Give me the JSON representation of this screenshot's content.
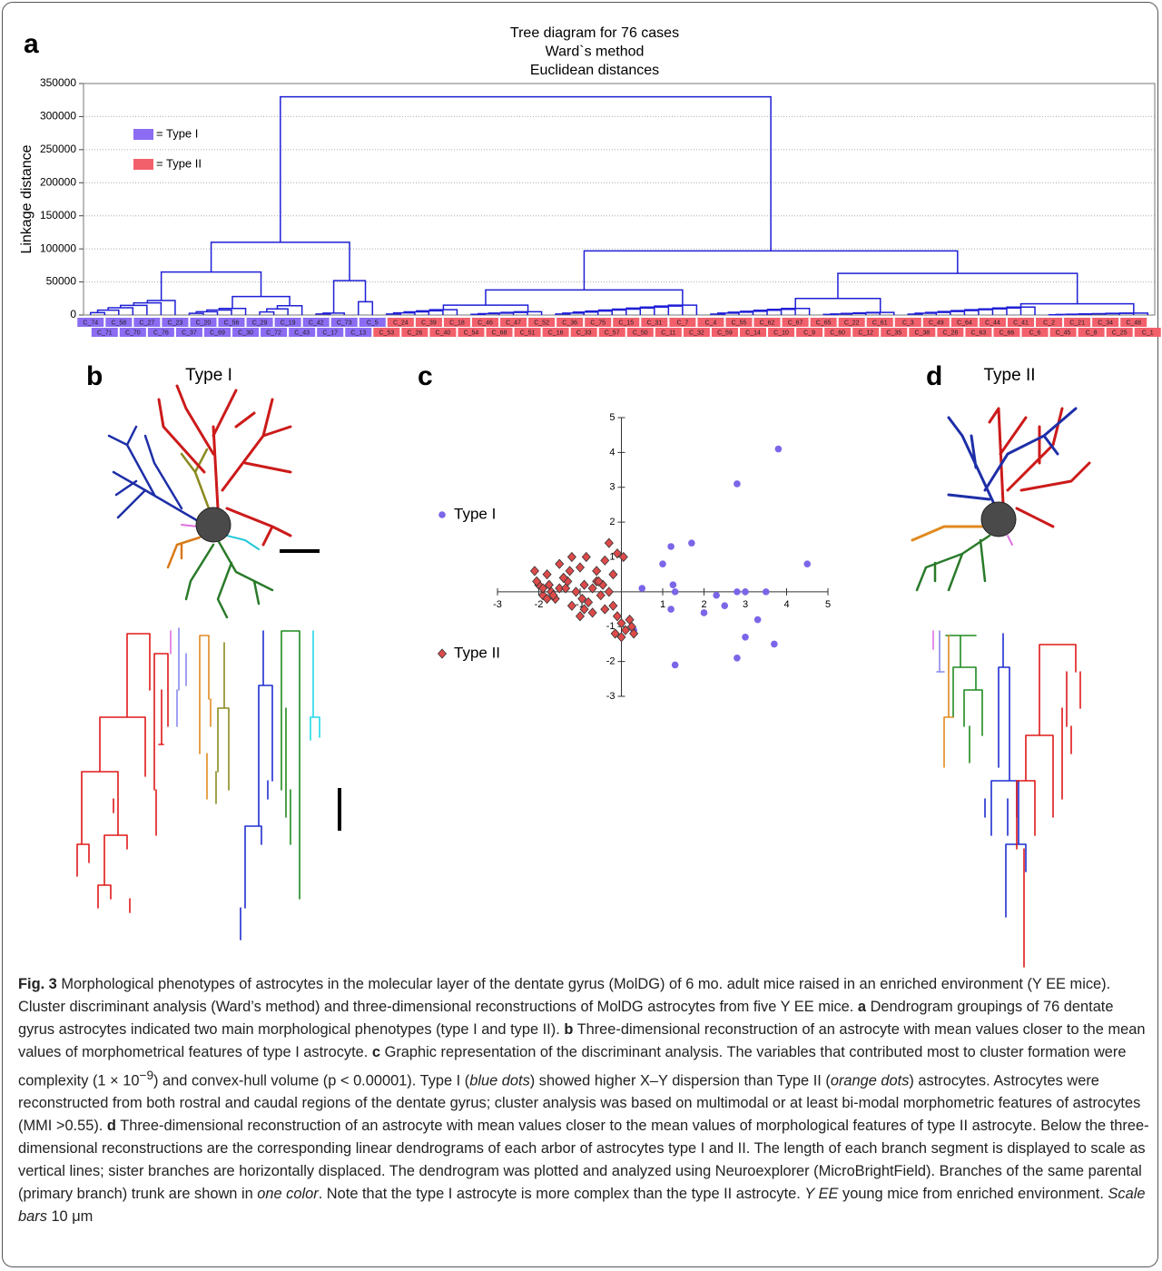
{
  "panel_labels": [
    "a",
    "b",
    "c",
    "d"
  ],
  "panel_titles": [
    "Type I",
    "Type II"
  ],
  "chart_data": [
    {
      "type": "dendrogram",
      "title": [
        "Tree diagram for 76 cases",
        "Ward`s method",
        "Euclidean distances"
      ],
      "y_label": "Linkage distance",
      "ylim": [
        0,
        350000
      ],
      "yticks": [
        0,
        50000,
        100000,
        150000,
        200000,
        250000,
        300000,
        350000
      ],
      "grid": true,
      "color": "#1f1fd6",
      "legend": [
        {
          "label": "= Type I",
          "color": "#8b6cf2"
        },
        {
          "label": "= Type II",
          "color": "#f2606c"
        }
      ],
      "leaves": [
        "C_74",
        "C_71",
        "C_58",
        "C_70",
        "C_27",
        "C_76",
        "C_23",
        "C_37",
        "C_20",
        "C_69",
        "C_56",
        "C_30",
        "C_29",
        "C_72",
        "C_19",
        "C_43",
        "C_42",
        "C_17",
        "C_73",
        "C_13",
        "C_5",
        "C_53",
        "C_24",
        "C_26",
        "C_39",
        "C_40",
        "C_18",
        "C_54",
        "C_46",
        "C_68",
        "C_47",
        "C_51",
        "C_52",
        "C_16",
        "C_36",
        "C_33",
        "C_75",
        "C_57",
        "C_15",
        "C_50",
        "C_31",
        "C_11",
        "C_7",
        "C_32",
        "C_4",
        "C_59",
        "C_55",
        "C_14",
        "C_62",
        "C_10",
        "C_67",
        "C_9",
        "C_65",
        "C_60",
        "C_22",
        "C_12",
        "C_61",
        "C_35",
        "C_3",
        "C_38",
        "C_49",
        "C_28",
        "C_64",
        "C_63",
        "C_44",
        "C_66",
        "C_41",
        "C_6",
        "C_2",
        "C_45",
        "C_21",
        "C_8",
        "C_34",
        "C_25",
        "C_48",
        "C_1"
      ],
      "tree": {
        "h": 330000,
        "c": [
          {
            "h": 110000,
            "c": [
              {
                "h": 65000,
                "c": [
                  {
                    "h": 22000,
                    "n": 7
                  },
                  {
                    "h": 28000,
                    "c": [
                      {
                        "h": 10000,
                        "n": 5
                      },
                      {
                        "h": 14000,
                        "n": 4
                      }
                    ]
                  }
                ]
              },
              {
                "h": 52000,
                "c": [
                  {
                    "h": 3000,
                    "n": 3
                  },
                  {
                    "h": 20000,
                    "n": 2
                  }
                ]
              }
            ]
          },
          {
            "h": 97000,
            "c": [
              {
                "h": 38000,
                "c": [
                  {
                    "h": 15000,
                    "c": [
                      {
                        "h": 8000,
                        "n": 6
                      },
                      {
                        "h": 5000,
                        "n": 6
                      }
                    ]
                  },
                  {
                    "h": 15000,
                    "n": 11
                  }
                ]
              },
              {
                "h": 63000,
                "c": [
                  {
                    "h": 25000,
                    "c": [
                      {
                        "h": 10000,
                        "n": 8
                      },
                      {
                        "h": 4000,
                        "n": 6
                      }
                    ]
                  },
                  {
                    "h": 17000,
                    "c": [
                      {
                        "h": 12000,
                        "n": 10
                      },
                      {
                        "h": 3000,
                        "n": 8
                      }
                    ]
                  }
                ]
              }
            ]
          }
        ]
      }
    },
    {
      "type": "scatter",
      "xlim": [
        -3,
        5
      ],
      "ylim": [
        -3,
        5
      ],
      "xticks": [
        -3,
        -2,
        -1,
        1,
        2,
        3,
        4,
        5
      ],
      "yticks": [
        -3,
        -2,
        -1,
        1,
        2,
        3,
        4,
        5
      ],
      "series": [
        {
          "name": "Type I",
          "color": "#7a66e8",
          "marker": "circle",
          "x": [
            0.5,
            0.3,
            1.0,
            1.2,
            1.25,
            1.3,
            1.2,
            1.3,
            1.7,
            2.0,
            2.3,
            2.5,
            2.8,
            2.8,
            2.8,
            3.0,
            3.0,
            3.3,
            3.5,
            3.7,
            3.8,
            4.5
          ],
          "y": [
            0.1,
            -1.1,
            0.8,
            -0.5,
            0.2,
            0.0,
            1.3,
            -2.1,
            1.4,
            -0.6,
            -0.1,
            -0.4,
            0.0,
            3.1,
            -1.9,
            0.0,
            -1.3,
            -0.8,
            0.0,
            -1.5,
            4.1,
            0.8
          ]
        },
        {
          "name": "Type II",
          "color": "#dd4a4a",
          "marker": "diamond",
          "x": [
            -2.1,
            -2.0,
            -1.9,
            -1.8,
            -1.9,
            -1.7,
            -1.6,
            -1.5,
            -1.4,
            -1.3,
            -1.2,
            -1.1,
            -1.0,
            -0.9,
            -0.8,
            -0.7,
            -0.6,
            -0.5,
            -0.4,
            -0.3,
            -0.2,
            -0.1,
            0.0,
            0.1,
            0.2,
            0.3,
            -1.5,
            -1.2,
            -0.9,
            -0.6,
            -0.3,
            -1.8,
            -1.4,
            -1.0,
            -0.7,
            -0.4,
            -0.1,
            -2.05,
            -1.65,
            -1.25,
            -0.85,
            -0.45,
            0.05,
            0.25,
            -0.15,
            -0.55,
            -0.95,
            -1.35,
            -1.75,
            -0.2,
            0.0
          ],
          "y": [
            0.6,
            0.2,
            -0.1,
            0.5,
            0.1,
            0.0,
            -0.2,
            0.1,
            0.4,
            0.3,
            -0.4,
            0.0,
            0.7,
            0.2,
            -0.3,
            0.1,
            0.3,
            -0.1,
            -0.5,
            0.0,
            0.5,
            -0.7,
            -0.9,
            -1.1,
            -0.8,
            -1.2,
            0.8,
            1.0,
            -0.5,
            0.6,
            1.4,
            -0.2,
            0.4,
            -0.7,
            -0.6,
            0.9,
            1.1,
            0.3,
            -0.1,
            0.6,
            1.0,
            0.2,
            1.0,
            -1.0,
            -1.2,
            0.3,
            -0.2,
            0.1,
            0.2,
            -0.4,
            -1.3
          ]
        }
      ]
    }
  ],
  "caption": [
    "Fig. 3",
    "  Morphological phenotypes of astrocytes in the molecular layer of the dentate gyrus (MolDG) of 6 mo. adult mice raised in an enriched environment (Y EE mice). Cluster discriminant analysis (Ward’s method) and three-dimensional reconstructions of MolDG astrocytes from five Y EE mice. ",
    "a",
    " Dendrogram groupings of 76 dentate gyrus astrocytes indicated two main morphological phenotypes (type I and type II). ",
    "b",
    " Three-dimensional reconstruction of an astrocyte with mean values closer to the mean values of morphometrical features of type I astrocyte. ",
    "c",
    " Graphic representation of the discriminant analysis. The variables that contributed most to cluster formation were complexity (1 × 10",
    "−9",
    ") and convex-hull volume (p < 0.00001). Type I (",
    "blue dots",
    ") showed higher X–Y dispersion than Type II (",
    "orange dots",
    ") astrocytes. Astrocytes were reconstructed from both rostral and caudal regions of the dentate gyrus; cluster analysis was based on multimodal or at least bi-modal morphometric features of astrocytes (MMI >0.55). ",
    "d",
    " Three-dimensional reconstruction of an astrocyte with mean values closer to the mean values of morphological features of type II astrocyte. Below the three-dimensional reconstructions are the corresponding linear dendrograms of each arbor of astrocytes type I and II. The length of each branch segment is displayed to scale as vertical lines; sister branches are horizontally displaced. The dendrogram was plotted and analyzed using Neuroexplorer (MicroBrightField). Branches of the same parental (primary branch) trunk are shown in ",
    "one color",
    ". Note that the type I astrocyte is more complex than the type II astrocyte. ",
    "Y EE",
    " young mice from enriched environment. ",
    "Scale bars",
    " 10 μm"
  ]
}
